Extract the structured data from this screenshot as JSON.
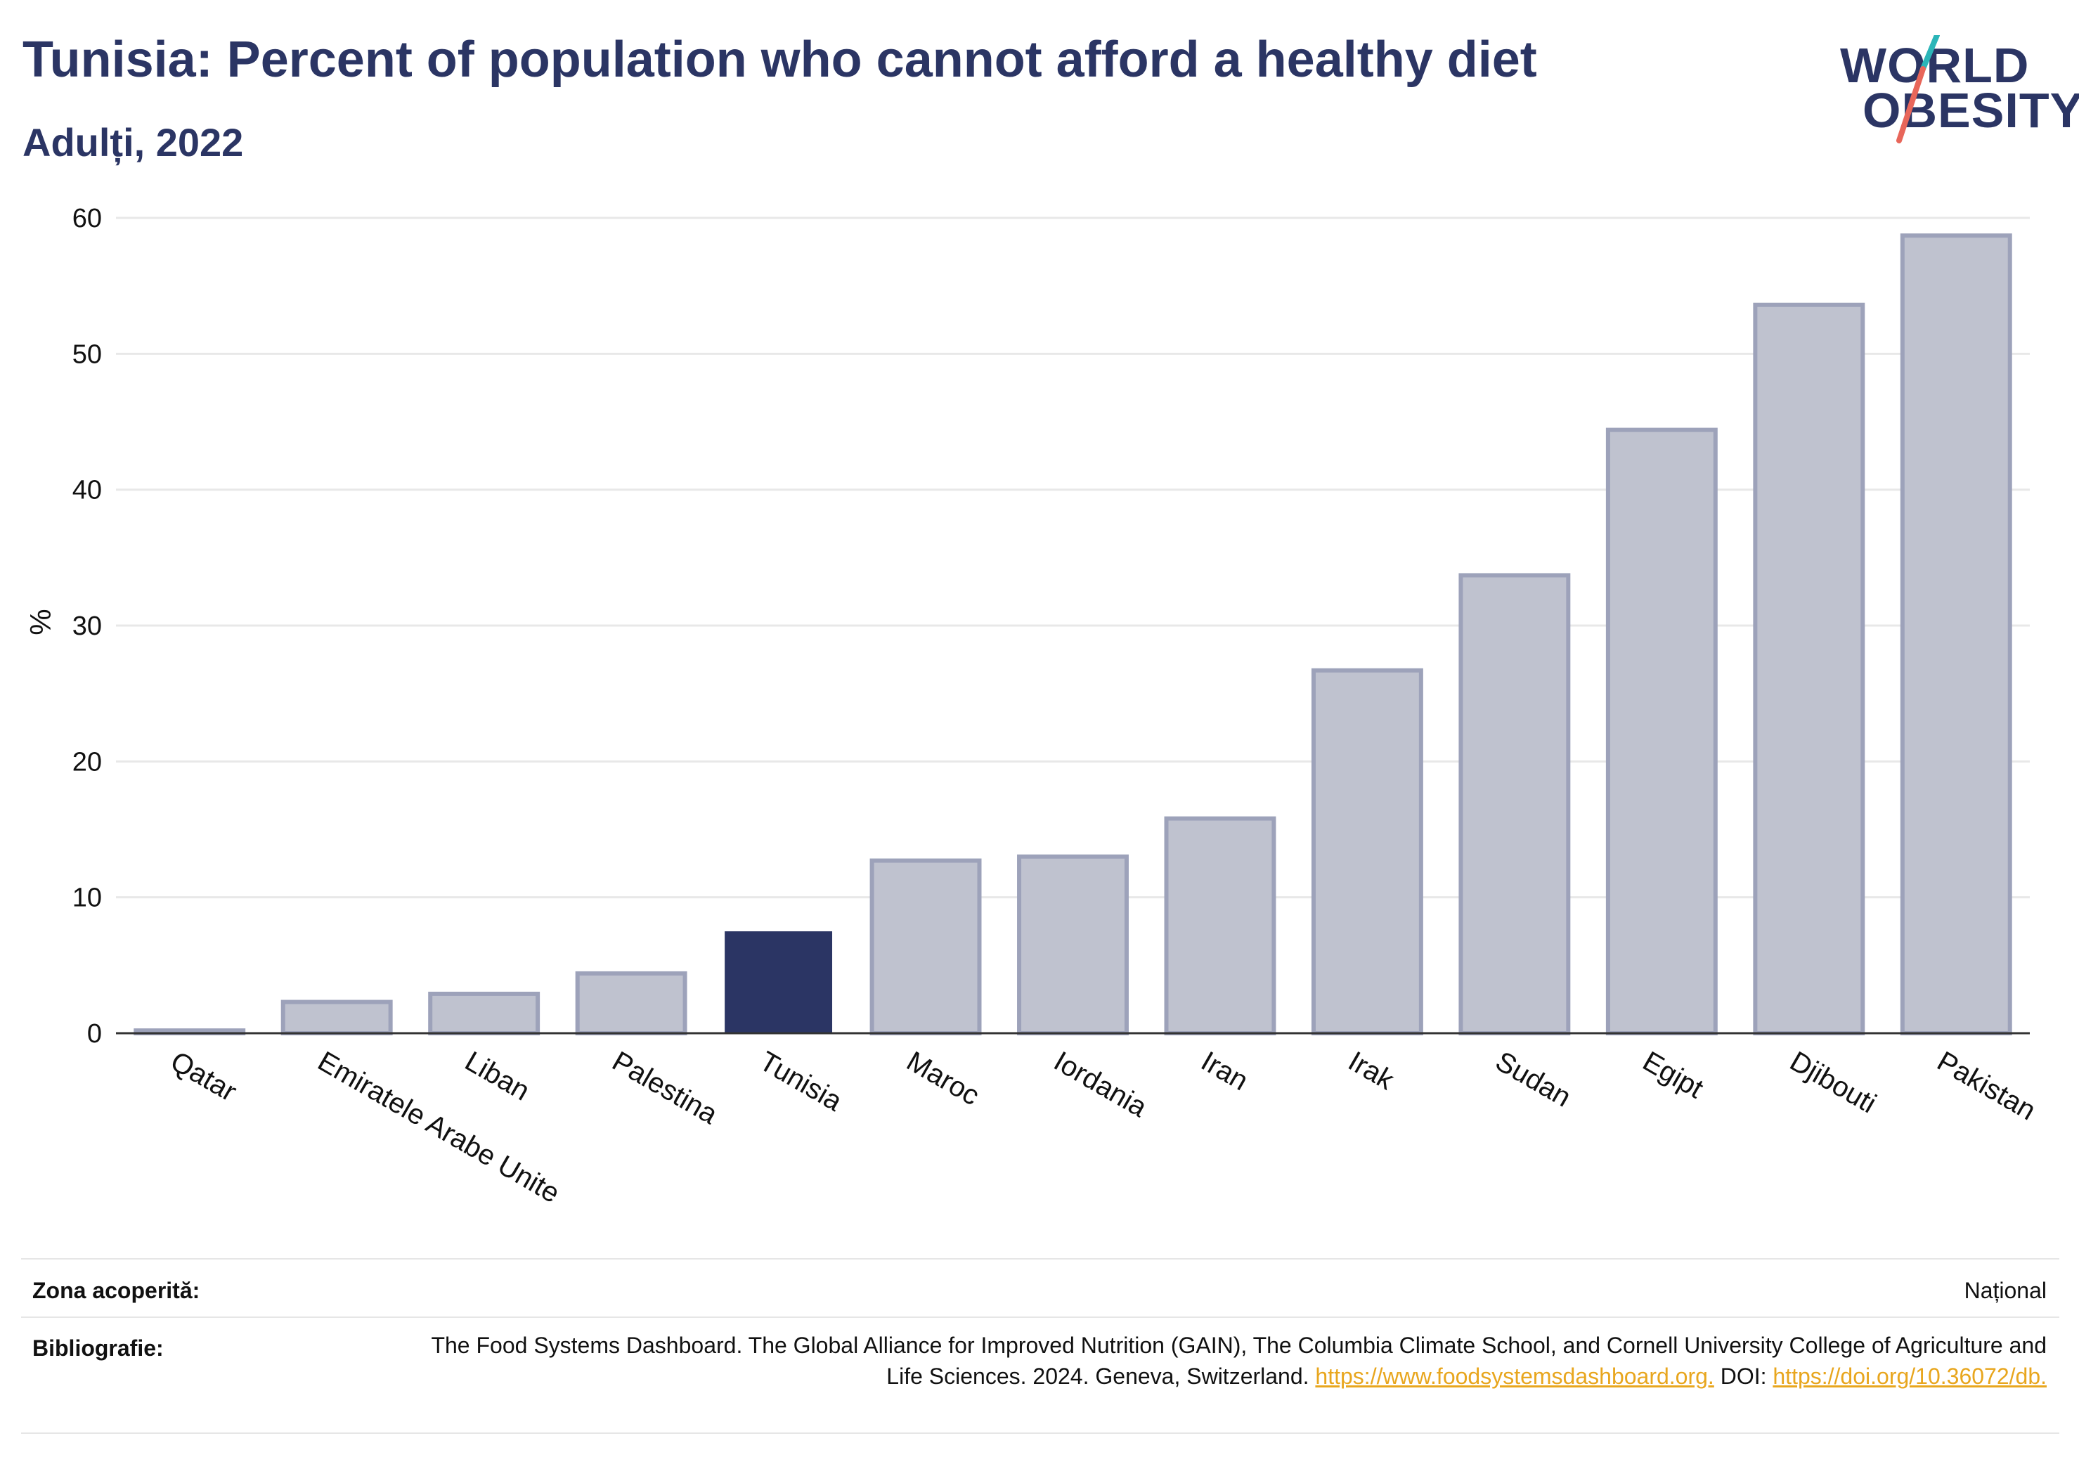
{
  "header": {
    "title": "Tunisia: Percent of population who cannot afford a healthy diet",
    "subtitle": "Adulți, 2022"
  },
  "logo": {
    "line1": "WORLD",
    "line2": "OBESITY",
    "colors": {
      "text": "#2b3564",
      "slash_top": "#2bb5b8",
      "slash_bottom": "#e8665a"
    }
  },
  "colors": {
    "highlight_bar": "#2b3564",
    "bar_fill": "#bfc2cf",
    "bar_stroke": "#9da2ba",
    "grid": "#e8e8e8",
    "link": "#e8a61e"
  },
  "chart_data": {
    "type": "bar",
    "title": "Tunisia: Percent of population who cannot afford a healthy diet",
    "subtitle": "Adulți, 2022",
    "xlabel": "",
    "ylabel": "%",
    "ylim": [
      0,
      60
    ],
    "yticks": [
      0,
      10,
      20,
      30,
      40,
      50,
      60
    ],
    "grid": true,
    "highlight": "Tunisia",
    "categories": [
      "Qatar",
      "Emiratele Arabe Unite",
      "Liban",
      "Palestina",
      "Tunisia",
      "Maroc",
      "Iordania",
      "Iran",
      "Irak",
      "Sudan",
      "Egipt",
      "Djibouti",
      "Pakistan"
    ],
    "values": [
      0.2,
      2.3,
      2.9,
      4.4,
      7.5,
      12.7,
      13.0,
      15.8,
      26.7,
      33.7,
      44.4,
      53.6,
      58.7
    ]
  },
  "footer": {
    "coverage_label": "Zona acoperită:",
    "coverage_value": "Național",
    "bibliography_label": "Bibliografie:",
    "bibliography_text": "The Food Systems Dashboard. The Global Alliance for Improved Nutrition (GAIN), The Columbia Climate School, and Cornell University College of Agriculture and Life Sciences. 2024. Geneva, Switzerland.",
    "bibliography_link": "https://www.foodsystemsdashboard.org.",
    "doi_label": "DOI:",
    "doi_link": "https://doi.org/10.36072/db."
  }
}
